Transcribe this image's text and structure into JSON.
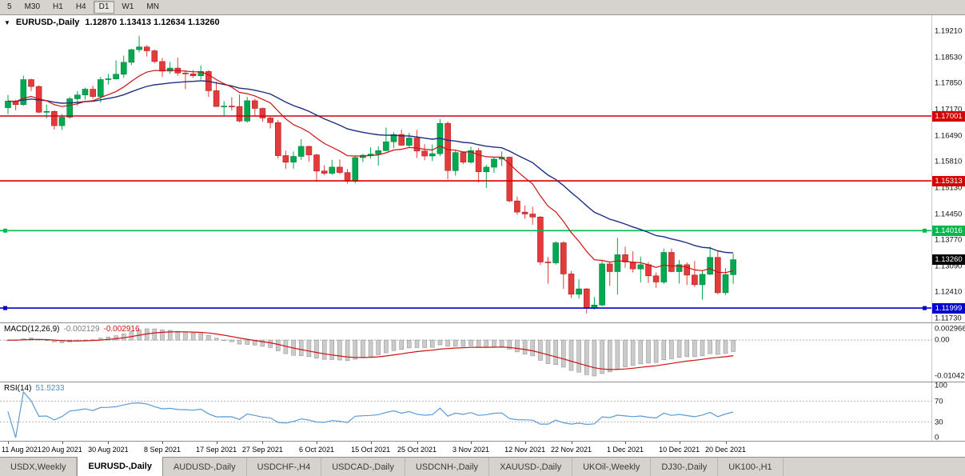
{
  "toolbar": {
    "timeframes": [
      "5",
      "M30",
      "H1",
      "H4",
      "D1",
      "W1",
      "MN"
    ],
    "active": "D1"
  },
  "chart": {
    "marker": "▼",
    "title_symbol": "EURUSD-,Daily",
    "ohlc_values": "1.12870 1.13413 1.12634 1.13260"
  },
  "price_axis": {
    "ticks": [
      "1.19210",
      "1.18530",
      "1.17850",
      "1.17170",
      "1.16490",
      "1.15810",
      "1.15130",
      "1.14450",
      "1.13770",
      "1.13090",
      "1.12410",
      "1.11730"
    ],
    "tags": [
      {
        "label": "1.17001",
        "price": 1.17001,
        "bg": "#d40000",
        "fg": "#ffffff",
        "kind": "resistance-1"
      },
      {
        "label": "1.15313",
        "price": 1.15313,
        "bg": "#d40000",
        "fg": "#ffffff",
        "kind": "resistance-2"
      },
      {
        "label": "1.14016",
        "price": 1.14016,
        "bg": "#00b94a",
        "fg": "#ffffff",
        "kind": "support-1"
      },
      {
        "label": "1.13260",
        "price": 1.1326,
        "bg": "#000000",
        "fg": "#ffffff",
        "kind": "current-price"
      },
      {
        "label": "1.11999",
        "price": 1.11999,
        "bg": "#0000cc",
        "fg": "#ffffff",
        "kind": "support-2"
      }
    ]
  },
  "indicators": {
    "macd": {
      "label": "MACD(12,26,9)",
      "value1": "-0.002129",
      "value2": "-0.002916",
      "axis_labels": [
        "0.002966",
        "0.00",
        "-0.010421"
      ],
      "histogram_color": "#cbcbcb",
      "signal_color": "#cc1111"
    },
    "rsi": {
      "label": "RSI(14)",
      "value": "51.5233",
      "axis_labels": [
        "100",
        "70",
        "30",
        "0"
      ],
      "levels": [
        70,
        30
      ],
      "line_color": "#5b9bd5"
    }
  },
  "date_axis": [
    {
      "label": "11 Aug 2021",
      "index": 0
    },
    {
      "label": "20 Aug 2021",
      "index": 7
    },
    {
      "label": "30 Aug 2021",
      "index": 13
    },
    {
      "label": "8 Sep 2021",
      "index": 20
    },
    {
      "label": "17 Sep 2021",
      "index": 27
    },
    {
      "label": "27 Sep 2021",
      "index": 33
    },
    {
      "label": "6 Oct 2021",
      "index": 40
    },
    {
      "label": "15 Oct 2021",
      "index": 47
    },
    {
      "label": "25 Oct 2021",
      "index": 53
    },
    {
      "label": "3 Nov 2021",
      "index": 60
    },
    {
      "label": "12 Nov 2021",
      "index": 67
    },
    {
      "label": "22 Nov 2021",
      "index": 73
    },
    {
      "label": "1 Dec 2021",
      "index": 80
    },
    {
      "label": "10 Dec 2021",
      "index": 87
    },
    {
      "label": "20 Dec 2021",
      "index": 93
    }
  ],
  "tabs": {
    "active_index": 1,
    "items": [
      "USDX,Weekly",
      "EURUSD-,Daily",
      "AUDUSD-,Daily",
      "USDCHF-,H4",
      "USDCAD-,Daily",
      "USDCNH-,Daily",
      "XAUUSD-,Daily",
      "UKOil-,Weekly",
      "DJ30-,Daily",
      "UK100-,H1"
    ]
  },
  "chart_data": {
    "type": "candlestick",
    "symbol": "EURUSD-",
    "timeframe": "Daily",
    "last_ohlc": {
      "open": 1.1287,
      "high": 1.13413,
      "low": 1.12634,
      "close": 1.1326
    },
    "bull_color": "#00a94f",
    "bear_color": "#e23b3b",
    "bull_border": "#00813c",
    "bear_border": "#b02020",
    "ma_fast": {
      "type": "EMA",
      "period": 12,
      "color": "#cc1111"
    },
    "ma_slow": {
      "type": "EMA",
      "period": 30,
      "color": "#1d2f7f"
    },
    "hlines": [
      {
        "price": 1.17001,
        "color": "#d40000",
        "markers": false
      },
      {
        "price": 1.15313,
        "color": "#d40000",
        "markers": false
      },
      {
        "price": 1.14016,
        "color": "#00b94a",
        "markers": true
      },
      {
        "price": 1.11999,
        "color": "#0000cc",
        "markers": true
      }
    ],
    "columns": [
      "date",
      "open",
      "high",
      "low",
      "close"
    ],
    "candles": [
      [
        "2021-08-11",
        1.1722,
        1.1755,
        1.1705,
        1.1739
      ],
      [
        "2021-08-12",
        1.1739,
        1.1742,
        1.1715,
        1.173
      ],
      [
        "2021-08-13",
        1.173,
        1.1805,
        1.1727,
        1.1795
      ],
      [
        "2021-08-16",
        1.1795,
        1.1797,
        1.1765,
        1.1777
      ],
      [
        "2021-08-17",
        1.1777,
        1.178,
        1.1708,
        1.171
      ],
      [
        "2021-08-18",
        1.171,
        1.173,
        1.1694,
        1.1712
      ],
      [
        "2021-08-19",
        1.1712,
        1.1715,
        1.1665,
        1.1675
      ],
      [
        "2021-08-20",
        1.1675,
        1.1705,
        1.1664,
        1.1697
      ],
      [
        "2021-08-23",
        1.1697,
        1.175,
        1.1693,
        1.1745
      ],
      [
        "2021-08-24",
        1.1745,
        1.1765,
        1.1727,
        1.1755
      ],
      [
        "2021-08-25",
        1.1755,
        1.1774,
        1.1743,
        1.177
      ],
      [
        "2021-08-26",
        1.177,
        1.1779,
        1.1745,
        1.1751
      ],
      [
        "2021-08-27",
        1.1751,
        1.1802,
        1.1735,
        1.1795
      ],
      [
        "2021-08-30",
        1.1795,
        1.181,
        1.1782,
        1.1797
      ],
      [
        "2021-08-31",
        1.1797,
        1.1845,
        1.1795,
        1.1809
      ],
      [
        "2021-09-01",
        1.1809,
        1.1857,
        1.18,
        1.184
      ],
      [
        "2021-09-02",
        1.184,
        1.1875,
        1.1833,
        1.1873
      ],
      [
        "2021-09-03",
        1.1873,
        1.1909,
        1.1866,
        1.188
      ],
      [
        "2021-09-06",
        1.188,
        1.1885,
        1.1855,
        1.187
      ],
      [
        "2021-09-07",
        1.187,
        1.1873,
        1.1838,
        1.1842
      ],
      [
        "2021-09-08",
        1.1842,
        1.1851,
        1.1802,
        1.1817
      ],
      [
        "2021-09-09",
        1.1817,
        1.1841,
        1.181,
        1.1825
      ],
      [
        "2021-09-10",
        1.1825,
        1.1852,
        1.1805,
        1.1812
      ],
      [
        "2021-09-13",
        1.1812,
        1.1819,
        1.177,
        1.181
      ],
      [
        "2021-09-14",
        1.181,
        1.182,
        1.18,
        1.1805
      ],
      [
        "2021-09-15",
        1.1805,
        1.1832,
        1.1795,
        1.1816
      ],
      [
        "2021-09-16",
        1.1816,
        1.182,
        1.175,
        1.1766
      ],
      [
        "2021-09-17",
        1.1766,
        1.179,
        1.1724,
        1.1725
      ],
      [
        "2021-09-20",
        1.1725,
        1.1739,
        1.17,
        1.1726
      ],
      [
        "2021-09-21",
        1.1726,
        1.1749,
        1.1715,
        1.1725
      ],
      [
        "2021-09-22",
        1.1725,
        1.1756,
        1.1684,
        1.1687
      ],
      [
        "2021-09-23",
        1.1687,
        1.175,
        1.1683,
        1.174
      ],
      [
        "2021-09-24",
        1.174,
        1.1745,
        1.1701,
        1.172
      ],
      [
        "2021-09-27",
        1.172,
        1.1722,
        1.1685,
        1.1695
      ],
      [
        "2021-09-28",
        1.1695,
        1.17,
        1.1668,
        1.1683
      ],
      [
        "2021-09-29",
        1.1683,
        1.169,
        1.1589,
        1.1597
      ],
      [
        "2021-09-30",
        1.1597,
        1.161,
        1.1563,
        1.158
      ],
      [
        "2021-10-01",
        1.158,
        1.1608,
        1.1563,
        1.1595
      ],
      [
        "2021-10-04",
        1.1595,
        1.164,
        1.1586,
        1.1621
      ],
      [
        "2021-10-05",
        1.1621,
        1.1623,
        1.1581,
        1.1599
      ],
      [
        "2021-10-06",
        1.1599,
        1.1602,
        1.1529,
        1.1557
      ],
      [
        "2021-10-07",
        1.1557,
        1.1572,
        1.1546,
        1.1551
      ],
      [
        "2021-10-08",
        1.1551,
        1.1586,
        1.1547,
        1.1567
      ],
      [
        "2021-10-11",
        1.1567,
        1.1587,
        1.1549,
        1.1553
      ],
      [
        "2021-10-12",
        1.1553,
        1.1562,
        1.1524,
        1.153
      ],
      [
        "2021-10-13",
        1.153,
        1.1597,
        1.1525,
        1.1592
      ],
      [
        "2021-10-14",
        1.1592,
        1.1602,
        1.158,
        1.1598
      ],
      [
        "2021-10-15",
        1.1598,
        1.1619,
        1.1589,
        1.1601
      ],
      [
        "2021-10-18",
        1.1601,
        1.1621,
        1.1571,
        1.161
      ],
      [
        "2021-10-19",
        1.161,
        1.167,
        1.1609,
        1.1633
      ],
      [
        "2021-10-20",
        1.1633,
        1.1658,
        1.1617,
        1.1652
      ],
      [
        "2021-10-21",
        1.1652,
        1.1665,
        1.1622,
        1.1624
      ],
      [
        "2021-10-22",
        1.1624,
        1.1656,
        1.162,
        1.1643
      ],
      [
        "2021-10-25",
        1.1643,
        1.1664,
        1.1591,
        1.1609
      ],
      [
        "2021-10-26",
        1.1609,
        1.1627,
        1.1585,
        1.1596
      ],
      [
        "2021-10-27",
        1.1596,
        1.1626,
        1.1583,
        1.1602
      ],
      [
        "2021-10-28",
        1.1602,
        1.1692,
        1.1596,
        1.1681
      ],
      [
        "2021-10-29",
        1.1681,
        1.1686,
        1.1535,
        1.1558
      ],
      [
        "2021-11-01",
        1.1558,
        1.161,
        1.1545,
        1.1605
      ],
      [
        "2021-11-02",
        1.1605,
        1.1608,
        1.1575,
        1.158
      ],
      [
        "2021-11-03",
        1.158,
        1.162,
        1.1576,
        1.161
      ],
      [
        "2021-11-04",
        1.161,
        1.1617,
        1.1527,
        1.1555
      ],
      [
        "2021-11-05",
        1.1555,
        1.1573,
        1.1513,
        1.1567
      ],
      [
        "2021-11-08",
        1.1567,
        1.1593,
        1.1552,
        1.1588
      ],
      [
        "2021-11-09",
        1.1588,
        1.1608,
        1.157,
        1.1593
      ],
      [
        "2021-11-10",
        1.1593,
        1.1595,
        1.1476,
        1.1479
      ],
      [
        "2021-11-11",
        1.1479,
        1.149,
        1.1443,
        1.145
      ],
      [
        "2021-11-12",
        1.145,
        1.1467,
        1.1433,
        1.1445
      ],
      [
        "2021-11-15",
        1.1445,
        1.1464,
        1.1417,
        1.1437
      ],
      [
        "2021-11-16",
        1.1437,
        1.144,
        1.1312,
        1.132
      ],
      [
        "2021-11-17",
        1.132,
        1.1333,
        1.1264,
        1.1318
      ],
      [
        "2021-11-18",
        1.1318,
        1.1374,
        1.1313,
        1.137
      ],
      [
        "2021-11-19",
        1.137,
        1.1374,
        1.125,
        1.1289
      ],
      [
        "2021-11-22",
        1.1289,
        1.1296,
        1.1226,
        1.1236
      ],
      [
        "2021-11-23",
        1.1236,
        1.1275,
        1.1225,
        1.125
      ],
      [
        "2021-11-24",
        1.125,
        1.1252,
        1.1186,
        1.12
      ],
      [
        "2021-11-25",
        1.12,
        1.1229,
        1.1196,
        1.1208
      ],
      [
        "2021-11-26",
        1.1208,
        1.1323,
        1.1205,
        1.1315
      ],
      [
        "2021-11-29",
        1.1315,
        1.132,
        1.1258,
        1.1295
      ],
      [
        "2021-11-30",
        1.1295,
        1.1383,
        1.1235,
        1.1339
      ],
      [
        "2021-12-01",
        1.1339,
        1.136,
        1.1305,
        1.132
      ],
      [
        "2021-12-02",
        1.132,
        1.1348,
        1.1293,
        1.1302
      ],
      [
        "2021-12-03",
        1.1302,
        1.1334,
        1.1267,
        1.1313
      ],
      [
        "2021-12-06",
        1.1313,
        1.132,
        1.1266,
        1.1284
      ],
      [
        "2021-12-07",
        1.1284,
        1.1293,
        1.1253,
        1.1268
      ],
      [
        "2021-12-08",
        1.1268,
        1.1355,
        1.1263,
        1.1345
      ],
      [
        "2021-12-09",
        1.1345,
        1.1355,
        1.1294,
        1.1295
      ],
      [
        "2021-12-10",
        1.1295,
        1.1325,
        1.1264,
        1.1313
      ],
      [
        "2021-12-13",
        1.1313,
        1.1319,
        1.126,
        1.1286
      ],
      [
        "2021-12-14",
        1.1286,
        1.1323,
        1.1255,
        1.1261
      ],
      [
        "2021-12-15",
        1.1261,
        1.1298,
        1.1222,
        1.1288
      ],
      [
        "2021-12-16",
        1.1288,
        1.136,
        1.1286,
        1.1332
      ],
      [
        "2021-12-17",
        1.1332,
        1.1349,
        1.1236,
        1.124
      ],
      [
        "2021-12-20",
        1.124,
        1.1304,
        1.1234,
        1.1287
      ],
      [
        "2021-12-21",
        1.1287,
        1.13413,
        1.12634,
        1.1326
      ]
    ]
  }
}
